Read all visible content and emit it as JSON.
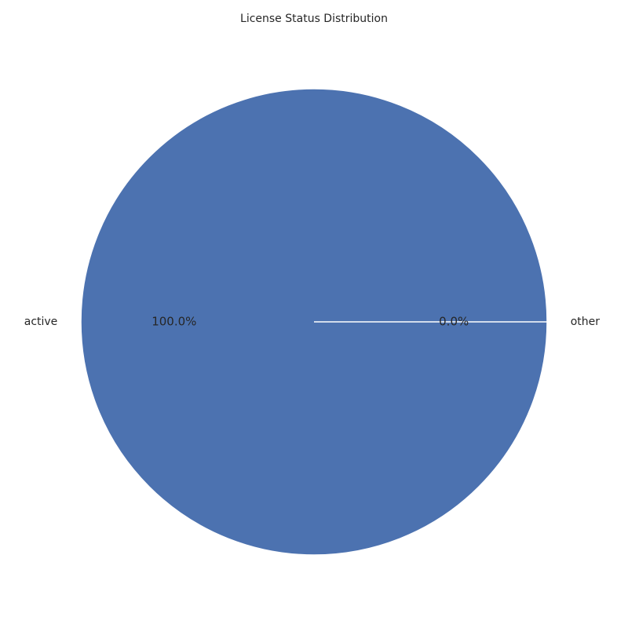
{
  "chart_data": {
    "type": "pie",
    "title": "License Status Distribution",
    "slices": [
      {
        "label": "active",
        "value": 100.0,
        "pct_label": "100.0%",
        "color": "#4c72b0"
      },
      {
        "label": "other",
        "value": 0.0,
        "pct_label": "0.0%",
        "color": "#dd8452"
      }
    ],
    "start_angle": 0,
    "direction": "counterclockwise",
    "wedge_edge_color": "#ffffff"
  }
}
